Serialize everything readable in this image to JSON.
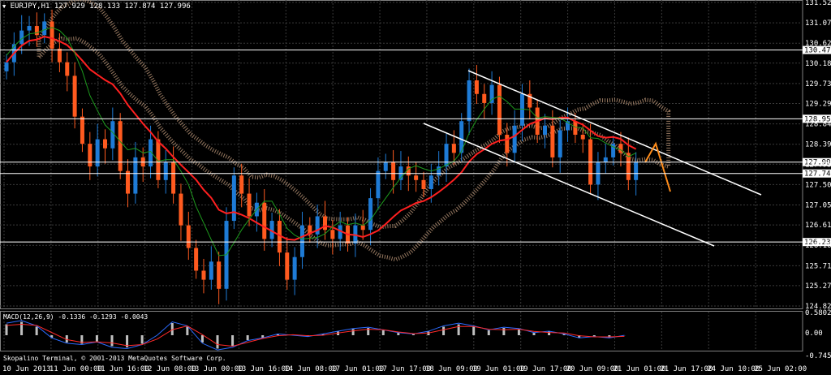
{
  "header": {
    "menu_glyph": "▼",
    "symbol_text": "EURJPY,H1  127.929 128.133 127.874 127.996"
  },
  "price_axis": {
    "ticks": [
      "131.520",
      "131.070",
      "130.620",
      "130.180",
      "129.730",
      "129.290",
      "128.840",
      "128.390",
      "127.950",
      "127.500",
      "127.050",
      "126.610",
      "126.160",
      "125.710",
      "125.270",
      "124.820"
    ],
    "labels": [
      "130.470",
      "128.952",
      "127.996",
      "127.745",
      "126.232"
    ],
    "label_colors": [
      "#000000",
      "#000000",
      "#000000",
      "#000000",
      "#000000"
    ]
  },
  "macd": {
    "title": "MACD(12,26,9) -0.1336 -0.1293 -0.0043",
    "ticks": [
      "0.5802",
      "0.00",
      "-0.7457"
    ]
  },
  "time_axis": {
    "labels": [
      "10 Jun 2013",
      "11 Jun 00:00",
      "11 Jun 16:00",
      "12 Jun 08:00",
      "13 Jun 00:00",
      "13 Jun 16:00",
      "14 Jun 08:00",
      "17 Jun 01:00",
      "17 Jun 17:00",
      "18 Jun 09:00",
      "19 Jun 01:00",
      "19 Jun 17:00",
      "20 Jun 09:00",
      "21 Jun 01:00",
      "21 Jun 17:00",
      "24 Jun 10:00",
      "25 Jun 02:00"
    ]
  },
  "watermark": "Skopalino Terminal, © 2001-2013 MetaQuotes Software Corp.",
  "colors": {
    "background": "#000000",
    "grid": "#3a3a3a",
    "bull_candle": "#1e7bd6",
    "bear_candle": "#ff5a1f",
    "ma_red": "#ff2020",
    "ma_green": "#1d9a1d",
    "cloud": "#c8a080",
    "channel": "#ffffff",
    "forecast": "#ff8c1a",
    "macd_line": "#2b6bff",
    "signal_line": "#ff2a2a"
  },
  "chart_data": {
    "type": "candlestick",
    "symbol": "EURJPY",
    "timeframe": "H1",
    "ohlc_last": {
      "open": 127.929,
      "high": 128.133,
      "low": 127.874,
      "close": 127.996
    },
    "ylim": [
      124.82,
      131.52
    ],
    "horizontal_levels": [
      130.47,
      128.952,
      127.996,
      127.745,
      126.232
    ],
    "close_path": [
      130.2,
      130.6,
      130.9,
      131.0,
      130.8,
      131.1,
      130.5,
      130.2,
      129.9,
      129.0,
      128.4,
      127.9,
      128.5,
      128.3,
      128.9,
      127.8,
      127.3,
      128.1,
      127.9,
      128.5,
      127.6,
      128.0,
      127.3,
      126.6,
      126.1,
      125.6,
      125.4,
      125.8,
      125.2,
      126.7,
      127.7,
      127.3,
      126.8,
      127.1,
      126.3,
      126.7,
      126.0,
      125.4,
      125.9,
      126.6,
      126.4,
      126.8,
      126.5,
      126.3,
      126.6,
      126.2,
      126.6,
      126.5,
      127.2,
      127.8,
      128.0,
      127.6,
      127.9,
      127.7,
      127.6,
      127.4,
      127.7,
      127.9,
      128.4,
      128.2,
      128.9,
      129.8,
      129.5,
      129.3,
      129.7,
      128.6,
      128.2,
      128.8,
      129.5,
      129.2,
      128.6,
      128.8,
      128.1,
      128.7,
      128.9,
      128.6,
      128.5,
      127.5,
      128.0,
      128.1,
      128.4,
      128.2,
      127.6,
      127.996
    ],
    "macd_values": [
      0.45,
      0.55,
      0.35,
      -0.1,
      -0.3,
      -0.35,
      -0.25,
      -0.45,
      -0.5,
      -0.35,
      0.0,
      0.5,
      0.35,
      -0.3,
      -0.55,
      -0.45,
      -0.2,
      -0.1,
      0.05,
      0.0,
      -0.05,
      0.05,
      0.15,
      0.25,
      0.3,
      0.2,
      0.1,
      0.05,
      0.15,
      0.35,
      0.45,
      0.35,
      0.2,
      0.3,
      0.25,
      0.1,
      0.15,
      0.05,
      -0.1,
      -0.05,
      -0.1,
      -0.0043
    ]
  }
}
